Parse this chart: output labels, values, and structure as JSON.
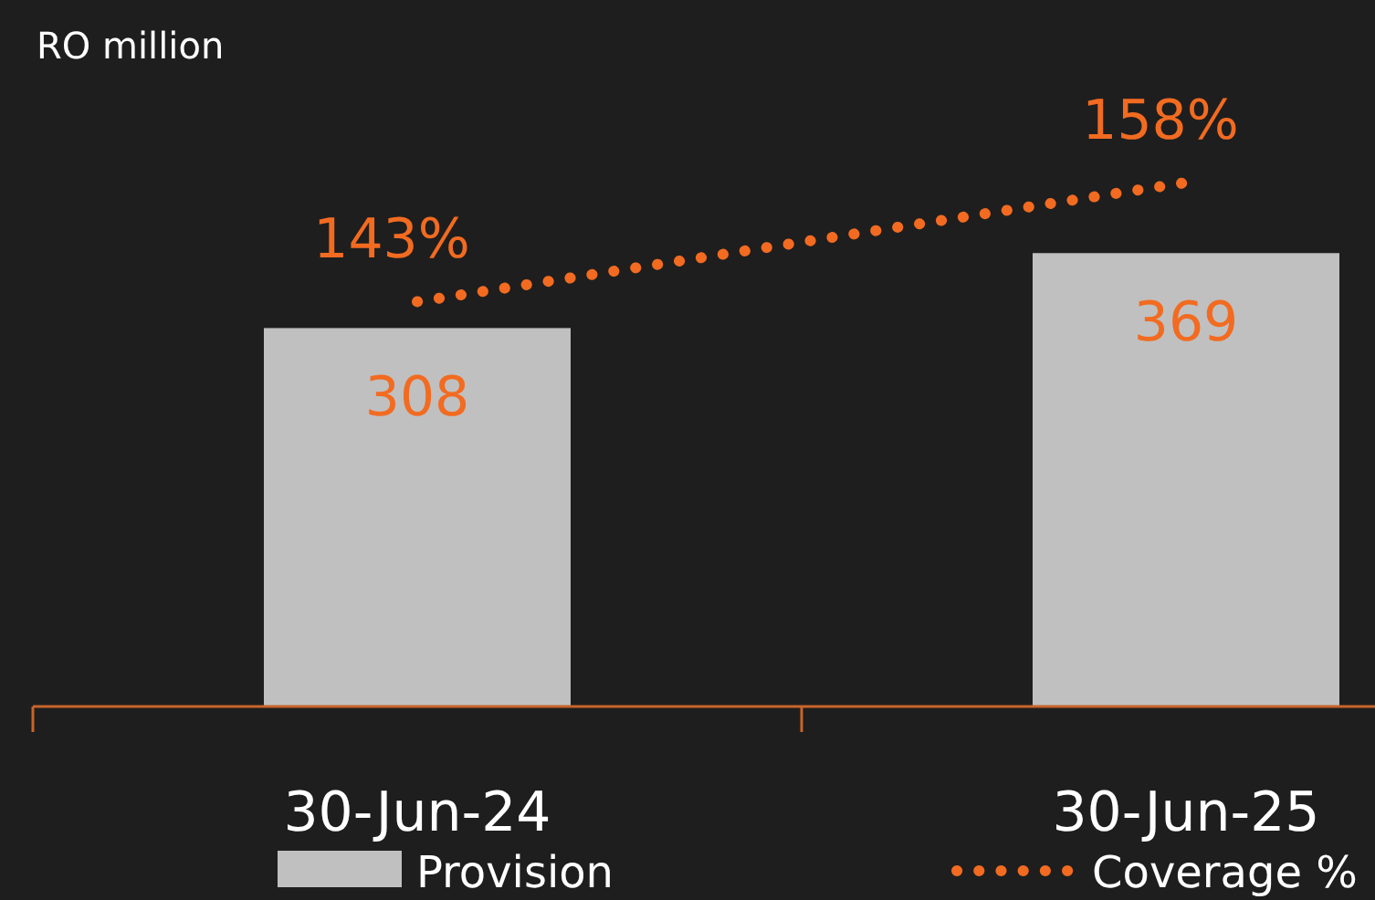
{
  "chart_data": {
    "type": "bar",
    "ylabel": "RO million",
    "categories": [
      "30-Jun-24",
      "30-Jun-25"
    ],
    "ylim": [
      0,
      575
    ],
    "y2lim": [
      92,
      181
    ],
    "tick_labels": "x",
    "legend": "bottom",
    "series": [
      {
        "name": "Provision",
        "color": "#c0c0c0",
        "values": [
          308,
          369
        ],
        "value_labels": [
          "308",
          "369"
        ]
      },
      {
        "name": "Coverage %",
        "type": "line",
        "axis": "y2",
        "color": "#f26b21",
        "line_style": "dotted",
        "marker": "none",
        "values": [
          143,
          158
        ],
        "value_labels": [
          "143%",
          "158%"
        ]
      }
    ]
  }
}
